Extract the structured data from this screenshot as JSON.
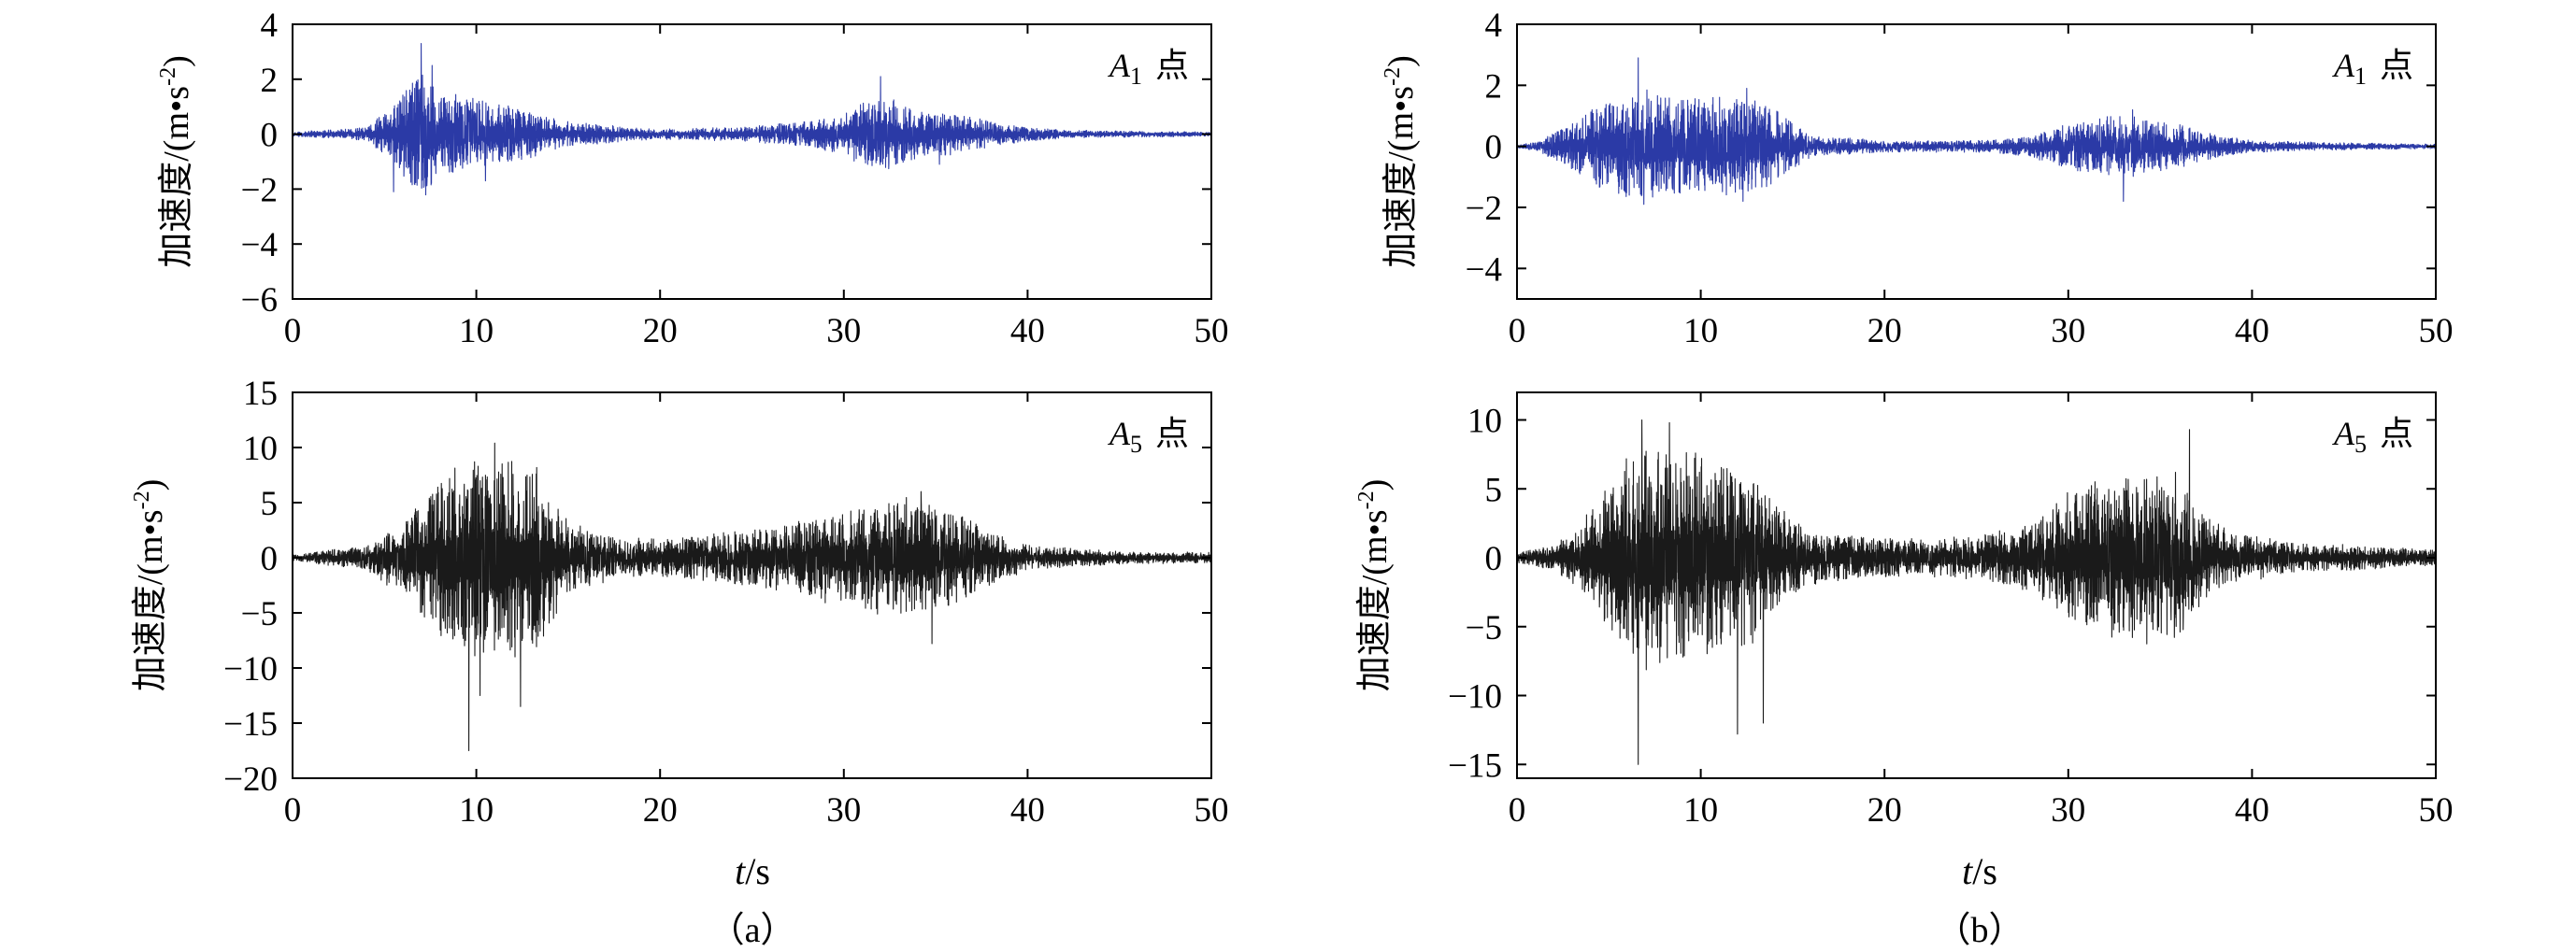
{
  "figure": {
    "y_axis_label": "加速度/(m•s",
    "y_axis_label_sup": "-2",
    "y_axis_label_close": ")",
    "x_axis_var": "t",
    "x_axis_unit": "/s",
    "captions": [
      "（a）",
      "（b）"
    ]
  },
  "colors": {
    "blue_series": "#2b3aa6",
    "black_series": "#1a1a1a",
    "axis": "#000000"
  },
  "chart_data": [
    {
      "id": "a-A1",
      "type": "line",
      "panel": "a",
      "point_label_letter": "A",
      "point_label_sub": "1",
      "point_label_char": "点",
      "x_range": [
        0,
        50
      ],
      "ylim": [
        -6,
        4
      ],
      "xticks": [
        0,
        10,
        20,
        30,
        40,
        50
      ],
      "yticks": [
        -6,
        -4,
        -2,
        0,
        2,
        4
      ],
      "xtick_labels": [
        "0",
        "10",
        "20",
        "30",
        "40",
        "50"
      ],
      "ytick_labels": [
        "−6",
        "−4",
        "−2",
        "0",
        "2",
        "4"
      ],
      "color": "#2b3aa6",
      "duration_s": 50,
      "seed": 11,
      "envelope": [
        [
          0,
          0.08
        ],
        [
          4,
          0.25
        ],
        [
          5.5,
          1.1
        ],
        [
          7,
          2.6
        ],
        [
          8,
          1.6
        ],
        [
          10,
          1.4
        ],
        [
          12.5,
          1.0
        ],
        [
          15,
          0.45
        ],
        [
          20,
          0.18
        ],
        [
          25,
          0.3
        ],
        [
          28,
          0.5
        ],
        [
          30,
          0.8
        ],
        [
          32,
          1.6
        ],
        [
          34,
          0.9
        ],
        [
          36,
          0.8
        ],
        [
          39,
          0.35
        ],
        [
          42,
          0.15
        ],
        [
          50,
          0.08
        ]
      ],
      "peaks": [
        {
          "t": 7.0,
          "v": 3.3
        },
        {
          "t": 7.6,
          "v": 2.5
        },
        {
          "t": 5.5,
          "v": -2.1
        },
        {
          "t": 10.5,
          "v": -1.7
        },
        {
          "t": 32.0,
          "v": 2.1
        },
        {
          "t": 35.2,
          "v": -1.1
        }
      ]
    },
    {
      "id": "a-A5",
      "type": "line",
      "panel": "a",
      "point_label_letter": "A",
      "point_label_sub": "5",
      "point_label_char": "点",
      "x_range": [
        0,
        50
      ],
      "ylim": [
        -20,
        15
      ],
      "xticks": [
        0,
        10,
        20,
        30,
        40,
        50
      ],
      "yticks": [
        -20,
        -15,
        -10,
        -5,
        0,
        5,
        10,
        15
      ],
      "xtick_labels": [
        "0",
        "10",
        "20",
        "30",
        "40",
        "50"
      ],
      "ytick_labels": [
        "−20",
        "−15",
        "−10",
        "−5",
        "0",
        "5",
        "10",
        "15"
      ],
      "color": "#1a1a1a",
      "duration_s": 50,
      "seed": 23,
      "envelope": [
        [
          0,
          0.3
        ],
        [
          4,
          1.2
        ],
        [
          6,
          3.5
        ],
        [
          8,
          7.5
        ],
        [
          10,
          9.5
        ],
        [
          12,
          9.5
        ],
        [
          13.5,
          8
        ],
        [
          15,
          3.5
        ],
        [
          18,
          1.8
        ],
        [
          22,
          2.0
        ],
        [
          26,
          3.0
        ],
        [
          30,
          4.5
        ],
        [
          33,
          5.8
        ],
        [
          36,
          4.5
        ],
        [
          38,
          2.5
        ],
        [
          40,
          1.2
        ],
        [
          45,
          0.6
        ],
        [
          50,
          0.5
        ]
      ],
      "peaks": [
        {
          "t": 9.6,
          "v": -17.5
        },
        {
          "t": 11.0,
          "v": 10.4
        },
        {
          "t": 12.4,
          "v": -13.5
        },
        {
          "t": 10.2,
          "v": -12.5
        },
        {
          "t": 34.2,
          "v": 6.0
        },
        {
          "t": 34.8,
          "v": -7.8
        }
      ]
    },
    {
      "id": "b-A1",
      "type": "line",
      "panel": "b",
      "point_label_letter": "A",
      "point_label_sub": "1",
      "point_label_char": "点",
      "x_range": [
        0,
        50
      ],
      "ylim": [
        -5,
        4
      ],
      "xticks": [
        0,
        10,
        20,
        30,
        40,
        50
      ],
      "yticks": [
        -4,
        -2,
        0,
        2,
        4
      ],
      "xtick_labels": [
        "0",
        "10",
        "20",
        "30",
        "40",
        "50"
      ],
      "ytick_labels": [
        "−4",
        "−2",
        "0",
        "2",
        "4"
      ],
      "color": "#2b3aa6",
      "duration_s": 50,
      "seed": 37,
      "envelope": [
        [
          0,
          0.05
        ],
        [
          1,
          0.15
        ],
        [
          3,
          0.8
        ],
        [
          5,
          1.7
        ],
        [
          7,
          2.0
        ],
        [
          10,
          1.5
        ],
        [
          12.5,
          1.8
        ],
        [
          14,
          1.3
        ],
        [
          16,
          0.35
        ],
        [
          20,
          0.2
        ],
        [
          25,
          0.2
        ],
        [
          28,
          0.35
        ],
        [
          30,
          0.8
        ],
        [
          33,
          1.1
        ],
        [
          36,
          0.8
        ],
        [
          38,
          0.4
        ],
        [
          40,
          0.2
        ],
        [
          45,
          0.12
        ],
        [
          50,
          0.08
        ]
      ],
      "peaks": [
        {
          "t": 6.6,
          "v": 2.9
        },
        {
          "t": 12.5,
          "v": 1.9
        },
        {
          "t": 12.3,
          "v": -1.8
        },
        {
          "t": 6.9,
          "v": -1.9
        },
        {
          "t": 33.5,
          "v": 1.2
        },
        {
          "t": 33.0,
          "v": -1.8
        }
      ]
    },
    {
      "id": "b-A5",
      "type": "line",
      "panel": "b",
      "point_label_letter": "A",
      "point_label_sub": "5",
      "point_label_char": "点",
      "x_range": [
        0,
        50
      ],
      "ylim": [
        -16,
        12
      ],
      "xticks": [
        0,
        10,
        20,
        30,
        40,
        50
      ],
      "yticks": [
        -15,
        -10,
        -5,
        0,
        5,
        10
      ],
      "xtick_labels": [
        "0",
        "10",
        "20",
        "30",
        "40",
        "50"
      ],
      "ytick_labels": [
        "−15",
        "−10",
        "−5",
        "0",
        "5",
        "10"
      ],
      "color": "#1a1a1a",
      "duration_s": 50,
      "seed": 53,
      "envelope": [
        [
          0,
          0.4
        ],
        [
          2,
          1.0
        ],
        [
          4,
          3.5
        ],
        [
          6,
          7.5
        ],
        [
          8,
          8.5
        ],
        [
          11,
          7.5
        ],
        [
          13,
          6.5
        ],
        [
          14,
          4
        ],
        [
          16,
          2.0
        ],
        [
          20,
          1.5
        ],
        [
          25,
          1.6
        ],
        [
          28,
          2.5
        ],
        [
          30,
          5
        ],
        [
          33,
          6.5
        ],
        [
          36,
          6.5
        ],
        [
          37,
          4
        ],
        [
          39,
          2
        ],
        [
          42,
          1.2
        ],
        [
          50,
          0.6
        ]
      ],
      "peaks": [
        {
          "t": 6.6,
          "v": -15.0
        },
        {
          "t": 6.8,
          "v": 10.0
        },
        {
          "t": 12.0,
          "v": -12.8
        },
        {
          "t": 13.4,
          "v": -12.0
        },
        {
          "t": 36.6,
          "v": 9.3
        },
        {
          "t": 8.3,
          "v": 9.8
        }
      ]
    }
  ]
}
